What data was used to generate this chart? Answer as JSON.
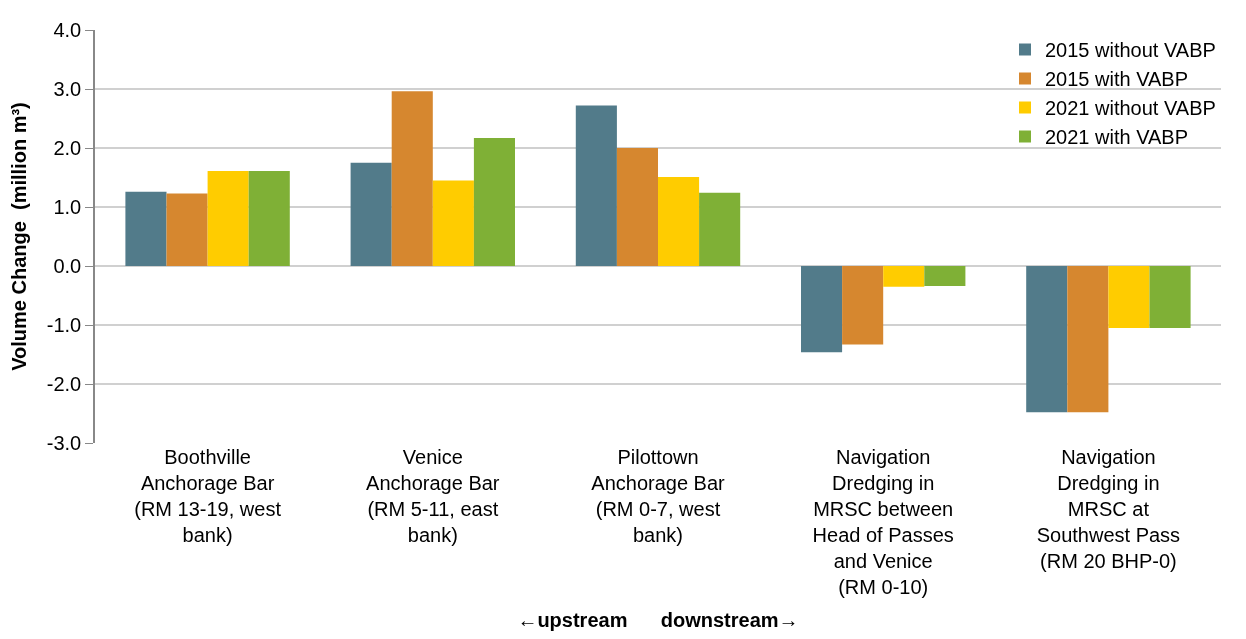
{
  "chart_data": {
    "type": "bar",
    "xlabel": "←upstream      downstream→",
    "ylabel": "Volume Change  (million m³)",
    "categories": [
      "Boothville\nAnchorage Bar\n(RM 13-19, west\nbank)",
      "Venice\nAnchorage Bar\n(RM 5-11, east\nbank)",
      "Pilottown\nAnchorage Bar\n(RM 0-7, west\nbank)",
      "Navigation\nDredging in\nMRSC between\nHead of Passes\nand Venice\n(RM 0-10)",
      "Navigation\nDredging in\nMRSC at\nSouthwest Pass\n(RM 20 BHP-0)"
    ],
    "series": [
      {
        "name": "2015 without VABP",
        "color": "#527b8a",
        "values": [
          1.26,
          1.75,
          2.72,
          -1.46,
          -2.48
        ]
      },
      {
        "name": "2015 with VABP",
        "color": "#d6872f",
        "values": [
          1.23,
          2.96,
          2.0,
          -1.33,
          -2.48
        ]
      },
      {
        "name": "2021 without VABP",
        "color": "#ffcc00",
        "values": [
          1.61,
          1.45,
          1.51,
          -0.35,
          -1.05
        ]
      },
      {
        "name": "2021 with VABP",
        "color": "#7fb036",
        "values": [
          1.61,
          2.17,
          1.24,
          -0.34,
          -1.05
        ]
      }
    ],
    "ylim": [
      -3.0,
      4.0
    ],
    "yticks": [
      {
        "value": -3,
        "label": "-3.0"
      },
      {
        "value": -2,
        "label": "-2.0"
      },
      {
        "value": -1,
        "label": "-1.0"
      },
      {
        "value": 0,
        "label": "0.0"
      },
      {
        "value": 1,
        "label": "1.0"
      },
      {
        "value": 2,
        "label": "2.0"
      },
      {
        "value": 3,
        "label": "3.0"
      },
      {
        "value": 4,
        "label": "4.0"
      }
    ],
    "grid": "y",
    "legend": "top right"
  }
}
